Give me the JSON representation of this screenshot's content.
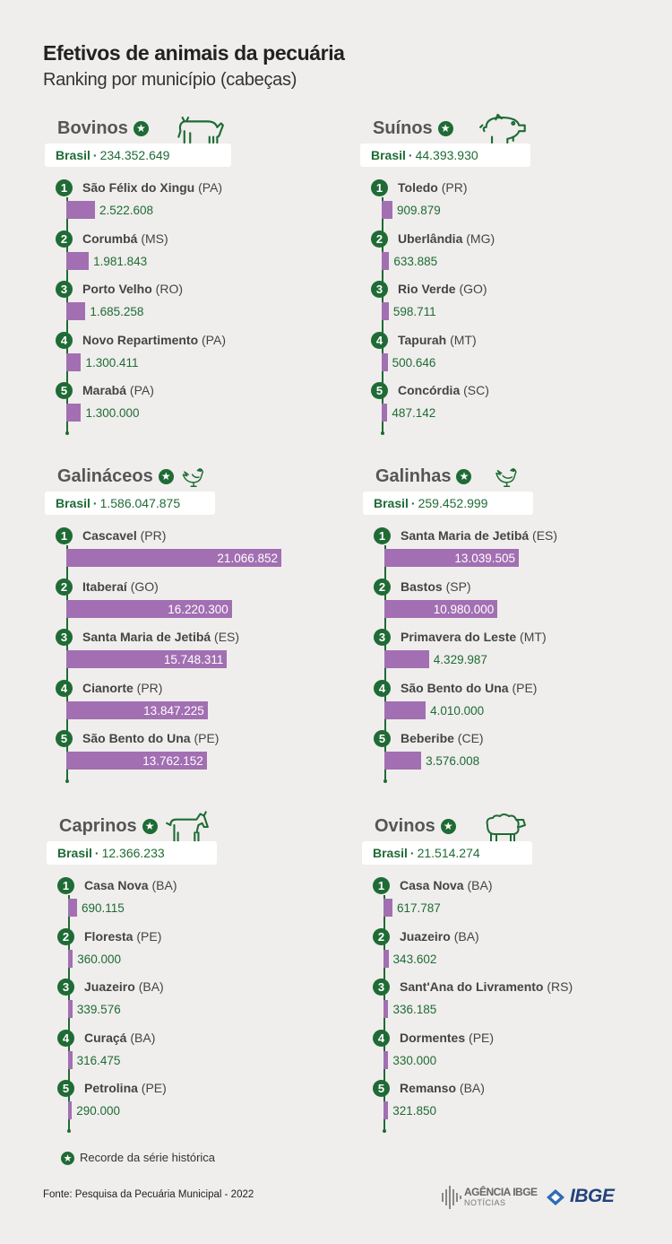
{
  "header": {
    "title": "Efetivos de animais da pecuária",
    "subtitle": "Ranking por município (cabeças)"
  },
  "colors": {
    "green": "#1f6b35",
    "bar": "#a26fb2",
    "background": "#efeeec"
  },
  "star_symbol": "★",
  "chart_data": [
    {
      "type": "bar",
      "title": "Bovinos",
      "record": true,
      "icon": "cow-icon",
      "total_label": "Brasil",
      "total": "234.352.649",
      "categories": [
        "São Félix do Xingu",
        "Corumbá",
        "Porto Velho",
        "Novo Repartimento",
        "Marabá"
      ],
      "states": [
        "(PA)",
        "(MS)",
        "(RO)",
        "(PA)",
        "(PA)"
      ],
      "values": [
        2522608,
        1981843,
        1685258,
        1300411,
        1300000
      ],
      "value_labels": [
        "2.522.608",
        "1.981.843",
        "1.685.258",
        "1.300.411",
        "1.300.000"
      ]
    },
    {
      "type": "bar",
      "title": "Suínos",
      "record": true,
      "icon": "pig-icon",
      "total_label": "Brasil",
      "total": "44.393.930",
      "categories": [
        "Toledo",
        "Uberlândia",
        "Rio Verde",
        "Tapurah",
        "Concórdia"
      ],
      "states": [
        "(PR)",
        "(MG)",
        "(GO)",
        "(MT)",
        "(SC)"
      ],
      "values": [
        909879,
        633885,
        598711,
        500646,
        487142
      ],
      "value_labels": [
        "909.879",
        "633.885",
        "598.711",
        "500.646",
        "487.142"
      ]
    },
    {
      "type": "bar",
      "title": "Galináceos",
      "record": true,
      "icon": "chicken-icon",
      "total_label": "Brasil",
      "total": "1.586.047.875",
      "categories": [
        "Cascavel",
        "Itaberaí",
        "Santa Maria de Jetibá",
        "Cianorte",
        "São Bento do Una"
      ],
      "states": [
        "(PR)",
        "(GO)",
        "(ES)",
        "(PR)",
        "(PE)"
      ],
      "values": [
        21066852,
        16220300,
        15748311,
        13847225,
        13762152
      ],
      "value_labels": [
        "21.066.852",
        "16.220.300",
        "15.748.311",
        "13.847.225",
        "13.762.152"
      ]
    },
    {
      "type": "bar",
      "title": "Galinhas",
      "record": true,
      "icon": "hen-icon",
      "total_label": "Brasil",
      "total": "259.452.999",
      "categories": [
        "Santa Maria de Jetibá",
        "Bastos",
        "Primavera do Leste",
        "São Bento do Una",
        "Beberibe"
      ],
      "states": [
        "(ES)",
        "(SP)",
        "(MT)",
        "(PE)",
        "(CE)"
      ],
      "values": [
        13039505,
        10980000,
        4329987,
        4010000,
        3576008
      ],
      "value_labels": [
        "13.039.505",
        "10.980.000",
        "4.329.987",
        "4.010.000",
        "3.576.008"
      ]
    },
    {
      "type": "bar",
      "title": "Caprinos",
      "record": true,
      "icon": "goat-icon",
      "total_label": "Brasil",
      "total": "12.366.233",
      "categories": [
        "Casa Nova",
        "Floresta",
        "Juazeiro",
        "Curaçá",
        "Petrolina"
      ],
      "states": [
        "(BA)",
        "(PE)",
        "(BA)",
        "(BA)",
        "(PE)"
      ],
      "values": [
        690115,
        360000,
        339576,
        316475,
        290000
      ],
      "value_labels": [
        "690.115",
        "360.000",
        "339.576",
        "316.475",
        "290.000"
      ]
    },
    {
      "type": "bar",
      "title": "Ovinos",
      "record": true,
      "icon": "sheep-icon",
      "total_label": "Brasil",
      "total": "21.514.274",
      "categories": [
        "Casa Nova",
        "Juazeiro",
        "Sant'Ana do Livramento",
        "Dormentes",
        "Remanso"
      ],
      "states": [
        "(BA)",
        "(BA)",
        "(RS)",
        "(PE)",
        "(BA)"
      ],
      "values": [
        617787,
        343602,
        336185,
        330000,
        321850
      ],
      "value_labels": [
        "617.787",
        "343.602",
        "336.185",
        "330.000",
        "321.850"
      ]
    }
  ],
  "legend": {
    "text": "Recorde da série histórica"
  },
  "footer": {
    "source": "Fonte: Pesquisa da Pecuária Municipal - 2022",
    "agencia_line1": "AGÊNCIA IBGE",
    "agencia_line2": "NOTÍCIAS",
    "ibge_logo": "IBGE"
  }
}
